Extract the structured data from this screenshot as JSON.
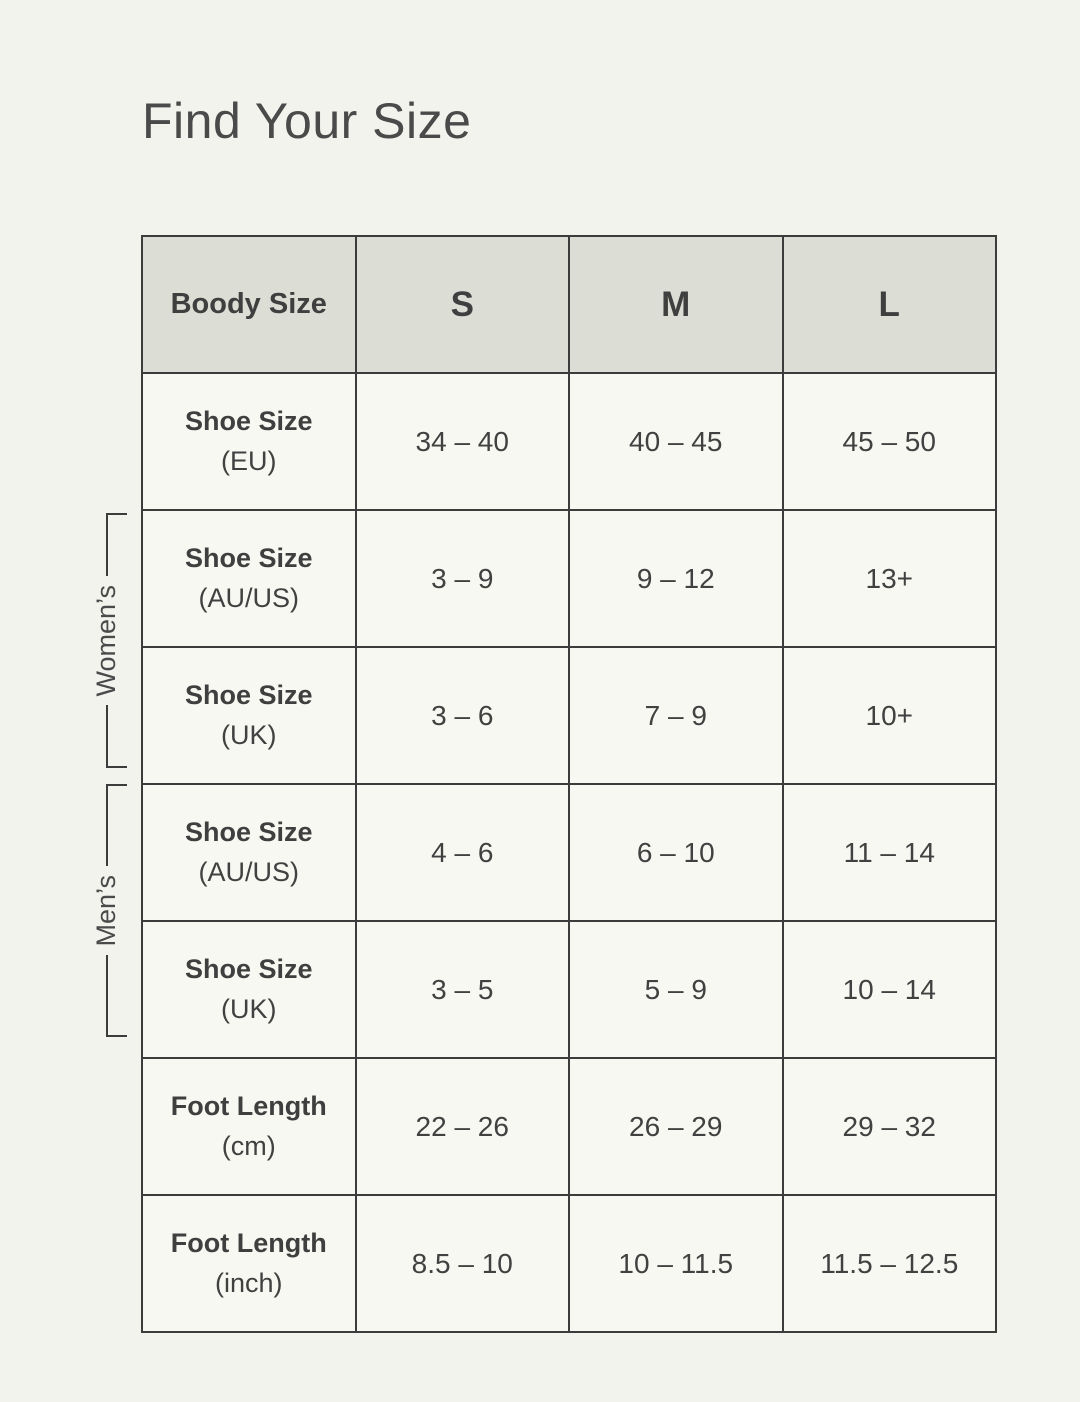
{
  "page": {
    "title": "Find Your Size"
  },
  "colors": {
    "page_background": "#f3f3ee",
    "cell_background": "#f8f8f2",
    "header_background": "#dcddd4",
    "border": "#3c3c3c",
    "text": "#414141"
  },
  "groups": {
    "womens": "Women’s",
    "mens": "Men’s"
  },
  "table": {
    "header": [
      "Boody Size",
      "S",
      "M",
      "L"
    ],
    "rows": [
      {
        "label": "Shoe Size",
        "sub": "(EU)",
        "values": [
          "34 – 40",
          "40 – 45",
          "45 – 50"
        ]
      },
      {
        "label": "Shoe Size",
        "sub": "(AU/US)",
        "values": [
          "3 – 9",
          "9 – 12",
          "13+"
        ]
      },
      {
        "label": "Shoe Size",
        "sub": "(UK)",
        "values": [
          "3 – 6",
          "7 – 9",
          "10+"
        ]
      },
      {
        "label": "Shoe Size",
        "sub": "(AU/US)",
        "values": [
          "4 – 6",
          "6 – 10",
          "11 – 14"
        ]
      },
      {
        "label": "Shoe Size",
        "sub": "(UK)",
        "values": [
          "3 – 5",
          "5 – 9",
          "10 – 14"
        ]
      },
      {
        "label": "Foot Length",
        "sub": "(cm)",
        "values": [
          "22 – 26",
          "26 – 29",
          "29 – 32"
        ]
      },
      {
        "label": "Foot Length",
        "sub": "(inch)",
        "values": [
          "8.5 – 10",
          "10 – 11.5",
          "11.5 – 12.5"
        ]
      }
    ]
  }
}
